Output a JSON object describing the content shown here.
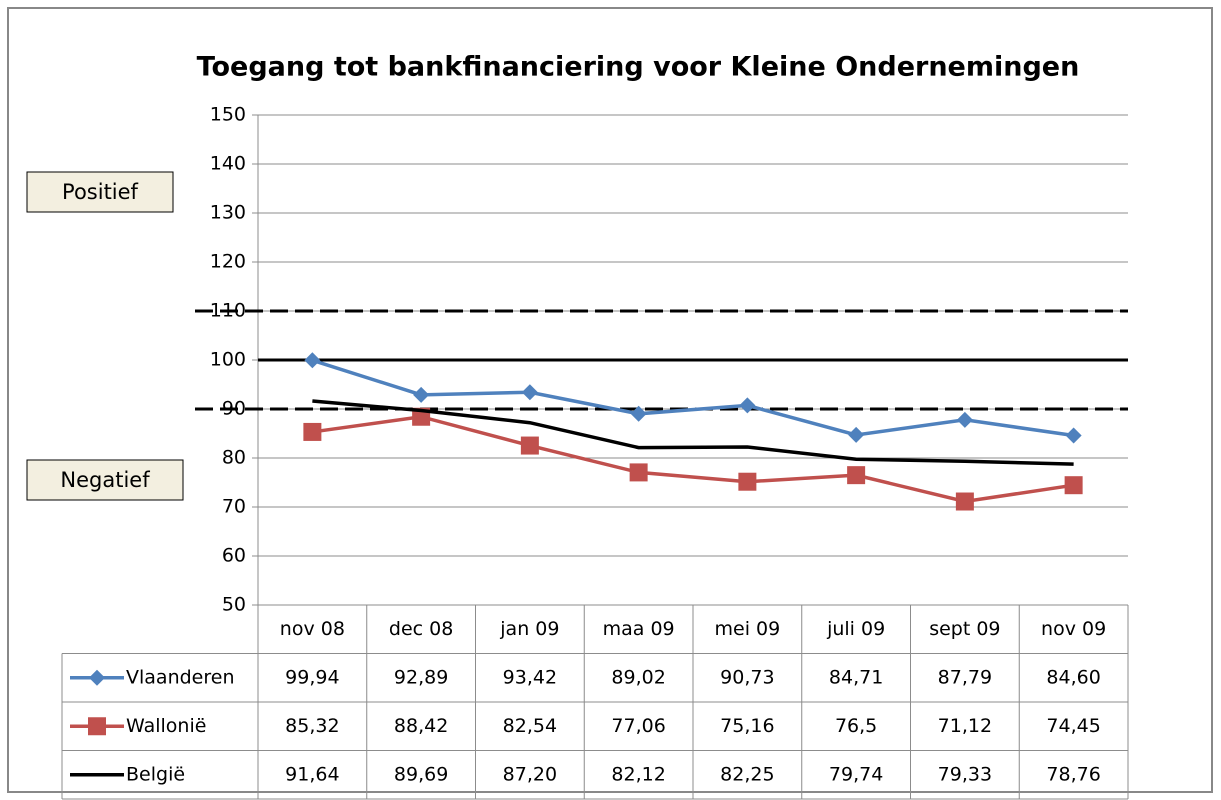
{
  "chart_data": {
    "type": "line",
    "title": "Toegang tot bankfinanciering voor Kleine Ondernemingen",
    "categories": [
      "nov 08",
      "dec 08",
      "jan 09",
      "maa 09",
      "mei 09",
      "juli 09",
      "sept 09",
      "nov 09"
    ],
    "series": [
      {
        "name": "Vlaanderen",
        "color": "#4f81bd",
        "marker": "diamond",
        "values": [
          99.94,
          92.89,
          93.42,
          89.02,
          90.73,
          84.71,
          87.79,
          84.6
        ],
        "value_labels": [
          "99,94",
          "92,89",
          "93,42",
          "89,02",
          "90,73",
          "84,71",
          "87,79",
          "84,60"
        ]
      },
      {
        "name": "Wallonië",
        "color": "#c0504d",
        "marker": "square",
        "values": [
          85.32,
          88.42,
          82.54,
          77.06,
          75.16,
          76.5,
          71.12,
          74.45
        ],
        "value_labels": [
          "85,32",
          "88,42",
          "82,54",
          "77,06",
          "75,16",
          "76,5",
          "71,12",
          "74,45"
        ]
      },
      {
        "name": "België",
        "color": "#000000",
        "marker": "none",
        "values": [
          91.64,
          89.69,
          87.2,
          82.12,
          82.25,
          79.74,
          79.33,
          78.76
        ],
        "value_labels": [
          "91,64",
          "89,69",
          "87,20",
          "82,12",
          "82,25",
          "79,74",
          "79,33",
          "78,76"
        ]
      }
    ],
    "ylim": [
      50,
      150
    ],
    "yticks": [
      50,
      60,
      70,
      80,
      90,
      100,
      110,
      120,
      130,
      140,
      150
    ],
    "grid": true,
    "reference_lines": [
      {
        "value": 110,
        "style": "dashed"
      },
      {
        "value": 100,
        "style": "solid"
      },
      {
        "value": 90,
        "style": "dashed"
      }
    ],
    "annotations": [
      "Positief",
      "Negatief"
    ]
  }
}
